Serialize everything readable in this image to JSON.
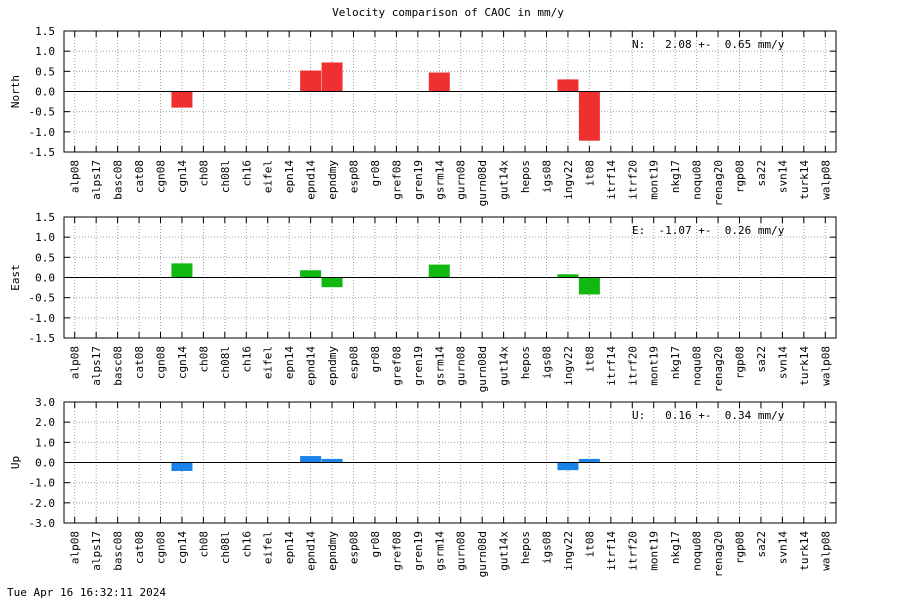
{
  "title": "Velocity comparison of CAOC in mm/y",
  "footer": "Tue Apr 16 16:32:11 2024",
  "chart_data": [
    {
      "type": "bar",
      "ylabel": "North",
      "annotation": "N:   2.08 +-  0.65 mm/y",
      "ylim": [
        -1.5,
        1.5
      ],
      "yticks": [
        1.5,
        1.0,
        0.5,
        0.0,
        -0.5,
        -1.0,
        -1.5
      ],
      "ytick_labels": [
        "1.5",
        "1.0",
        "0.5",
        "0.0",
        "-0.5",
        "-1.0",
        "-1.5"
      ],
      "color": "#ee3030",
      "grid": true,
      "categories": [
        "alp08",
        "alps17",
        "basc08",
        "cat08",
        "cgn08",
        "cgn14",
        "ch08",
        "ch08l",
        "ch16",
        "eifel",
        "epn14",
        "epnd14",
        "epndmy",
        "esp08",
        "gr08",
        "gref08",
        "gren19",
        "gsrm14",
        "gurn08",
        "gurn08d",
        "gut14x",
        "hepos",
        "igs08",
        "ingv22",
        "it08",
        "itrf14",
        "itrf20",
        "mont19",
        "nkg17",
        "noqu08",
        "renag20",
        "rgp08",
        "sa22",
        "svn14",
        "turk14",
        "walp08"
      ],
      "values": [
        null,
        null,
        null,
        null,
        null,
        -0.4,
        null,
        null,
        null,
        null,
        null,
        0.52,
        0.72,
        null,
        null,
        null,
        null,
        0.47,
        null,
        null,
        null,
        null,
        null,
        0.3,
        -1.22,
        null,
        null,
        null,
        null,
        null,
        null,
        null,
        null,
        null,
        null,
        null
      ]
    },
    {
      "type": "bar",
      "ylabel": "East",
      "annotation": "E:  -1.07 +-  0.26 mm/y",
      "ylim": [
        -1.5,
        1.5
      ],
      "yticks": [
        1.5,
        1.0,
        0.5,
        0.0,
        -0.5,
        -1.0,
        -1.5
      ],
      "ytick_labels": [
        "1.5",
        "1.0",
        "0.5",
        "0.0",
        "-0.5",
        "-1.0",
        "-1.5"
      ],
      "color": "#10b810",
      "grid": true,
      "categories": [
        "alp08",
        "alps17",
        "basc08",
        "cat08",
        "cgn08",
        "cgn14",
        "ch08",
        "ch08l",
        "ch16",
        "eifel",
        "epn14",
        "epnd14",
        "epndmy",
        "esp08",
        "gr08",
        "gref08",
        "gren19",
        "gsrm14",
        "gurn08",
        "gurn08d",
        "gut14x",
        "hepos",
        "igs08",
        "ingv22",
        "it08",
        "itrf14",
        "itrf20",
        "mont19",
        "nkg17",
        "noqu08",
        "renag20",
        "rgp08",
        "sa22",
        "svn14",
        "turk14",
        "walp08"
      ],
      "values": [
        null,
        null,
        null,
        null,
        null,
        0.35,
        null,
        null,
        null,
        null,
        null,
        0.18,
        -0.24,
        null,
        null,
        null,
        null,
        0.32,
        null,
        null,
        null,
        null,
        null,
        0.08,
        -0.42,
        null,
        null,
        null,
        null,
        null,
        null,
        null,
        null,
        null,
        null,
        null
      ]
    },
    {
      "type": "bar",
      "ylabel": "Up",
      "annotation": "U:   0.16 +-  0.34 mm/y",
      "ylim": [
        -3.0,
        3.0
      ],
      "yticks": [
        3.0,
        2.0,
        1.0,
        0.0,
        -1.0,
        -2.0,
        -3.0
      ],
      "ytick_labels": [
        "3.0",
        "2.0",
        "1.0",
        "0.0",
        "-1.0",
        "-2.0",
        "-3.0"
      ],
      "color": "#1a82e8",
      "grid": true,
      "categories": [
        "alp08",
        "alps17",
        "basc08",
        "cat08",
        "cgn08",
        "cgn14",
        "ch08",
        "ch08l",
        "ch16",
        "eifel",
        "epn14",
        "epnd14",
        "epndmy",
        "esp08",
        "gr08",
        "gref08",
        "gren19",
        "gsrm14",
        "gurn08",
        "gurn08d",
        "gut14x",
        "hepos",
        "igs08",
        "ingv22",
        "it08",
        "itrf14",
        "itrf20",
        "mont19",
        "nkg17",
        "noqu08",
        "renag20",
        "rgp08",
        "sa22",
        "svn14",
        "turk14",
        "walp08"
      ],
      "values": [
        null,
        null,
        null,
        null,
        null,
        -0.42,
        null,
        null,
        null,
        null,
        null,
        0.32,
        0.18,
        null,
        null,
        null,
        null,
        null,
        null,
        null,
        null,
        null,
        null,
        -0.38,
        0.18,
        null,
        null,
        null,
        null,
        null,
        null,
        null,
        null,
        null,
        null,
        null
      ]
    }
  ]
}
